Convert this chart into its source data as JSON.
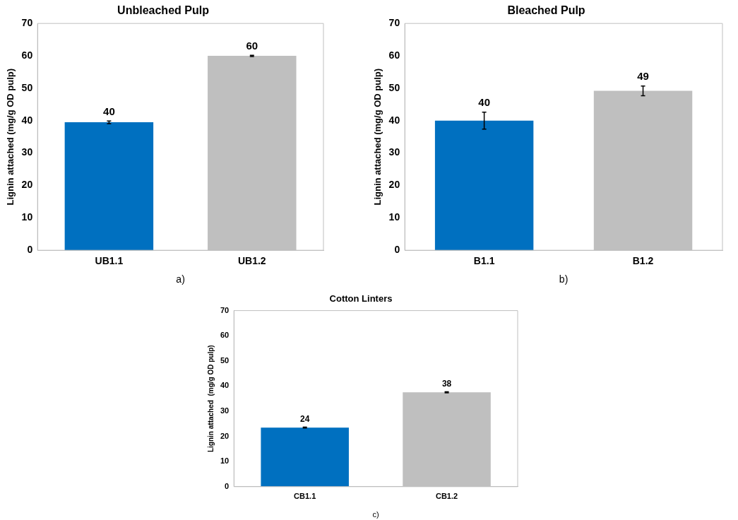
{
  "chart_data": [
    {
      "type": "bar",
      "title": "Unbleached Pulp",
      "ylabel": "Lignin attached (mg/g OD pulp)",
      "categories": [
        "UB1.1",
        "UB1.2"
      ],
      "values": [
        39.5,
        60
      ],
      "colors": [
        "#0070c0",
        "#bfbfbf"
      ],
      "errors": [
        0.4,
        0.2
      ],
      "value_labels": [
        "40",
        "60"
      ],
      "ylim": [
        0,
        70
      ],
      "yticks": [
        0,
        10,
        20,
        30,
        40,
        50,
        60,
        70
      ],
      "annotations": [
        "a)"
      ]
    },
    {
      "type": "bar",
      "title": "Bleached Pulp",
      "ylabel": "Lignin attached (mg/g OD pulp)",
      "categories": [
        "B1.1",
        "B1.2"
      ],
      "values": [
        40,
        49.2
      ],
      "colors": [
        "#0070c0",
        "#bfbfbf"
      ],
      "errors": [
        2.6,
        1.5
      ],
      "value_labels": [
        "40",
        "49"
      ],
      "ylim": [
        0,
        70
      ],
      "yticks": [
        0,
        10,
        20,
        30,
        40,
        50,
        60,
        70
      ],
      "annotations": [
        "b)"
      ]
    },
    {
      "type": "bar",
      "title": "Cotton Linters",
      "ylabel": "Lignin attached  (mg/g OD pulp)",
      "categories": [
        "CB1.1",
        "CB1.2"
      ],
      "values": [
        23.5,
        37.5
      ],
      "colors": [
        "#0070c0",
        "#bfbfbf"
      ],
      "errors": [
        0.2,
        0.2
      ],
      "value_labels": [
        "24",
        "38"
      ],
      "ylim": [
        0,
        70
      ],
      "yticks": [
        0,
        10,
        20,
        30,
        40,
        50,
        60,
        70
      ],
      "annotations": [
        "c)"
      ]
    }
  ]
}
